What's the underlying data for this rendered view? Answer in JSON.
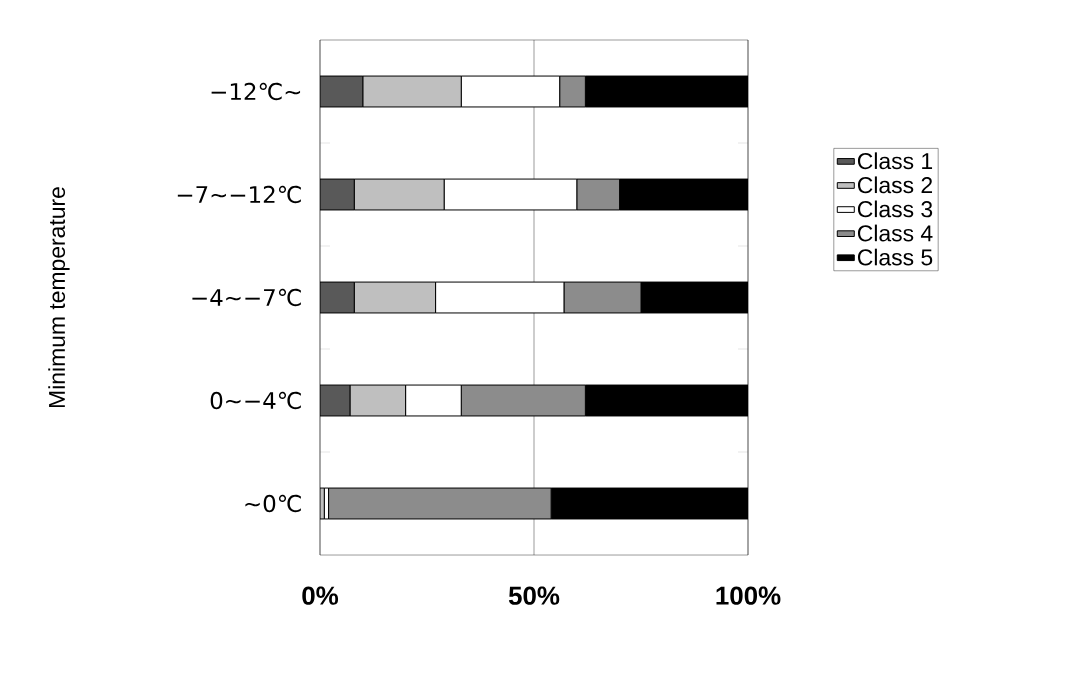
{
  "chart_data": {
    "type": "bar",
    "orientation": "horizontal",
    "stacked": true,
    "ylabel": "Minimum temperature",
    "categories": [
      "−12℃∼",
      "−7∼−12℃",
      "−4∼−7℃",
      "0∼−4℃",
      "∼0℃"
    ],
    "series": [
      {
        "name": "Class 1",
        "color": "#595959",
        "values": [
          10,
          8,
          8,
          7,
          0
        ]
      },
      {
        "name": "Class 2",
        "color": "#bfbfbf",
        "values": [
          23,
          21,
          19,
          13,
          1
        ]
      },
      {
        "name": "Class 3",
        "color": "#ffffff",
        "values": [
          23,
          31,
          30,
          13,
          1
        ]
      },
      {
        "name": "Class 4",
        "color": "#8c8c8c",
        "values": [
          6,
          10,
          18,
          29,
          52
        ]
      },
      {
        "name": "Class 5",
        "color": "#000000",
        "values": [
          38,
          30,
          25,
          38,
          46
        ]
      }
    ],
    "xlim": [
      0,
      100
    ],
    "xticks": [
      {
        "value": 0,
        "label": "0%"
      },
      {
        "value": 50,
        "label": "50%"
      },
      {
        "value": 100,
        "label": "100%"
      }
    ],
    "grid": "x",
    "legend": "right"
  }
}
